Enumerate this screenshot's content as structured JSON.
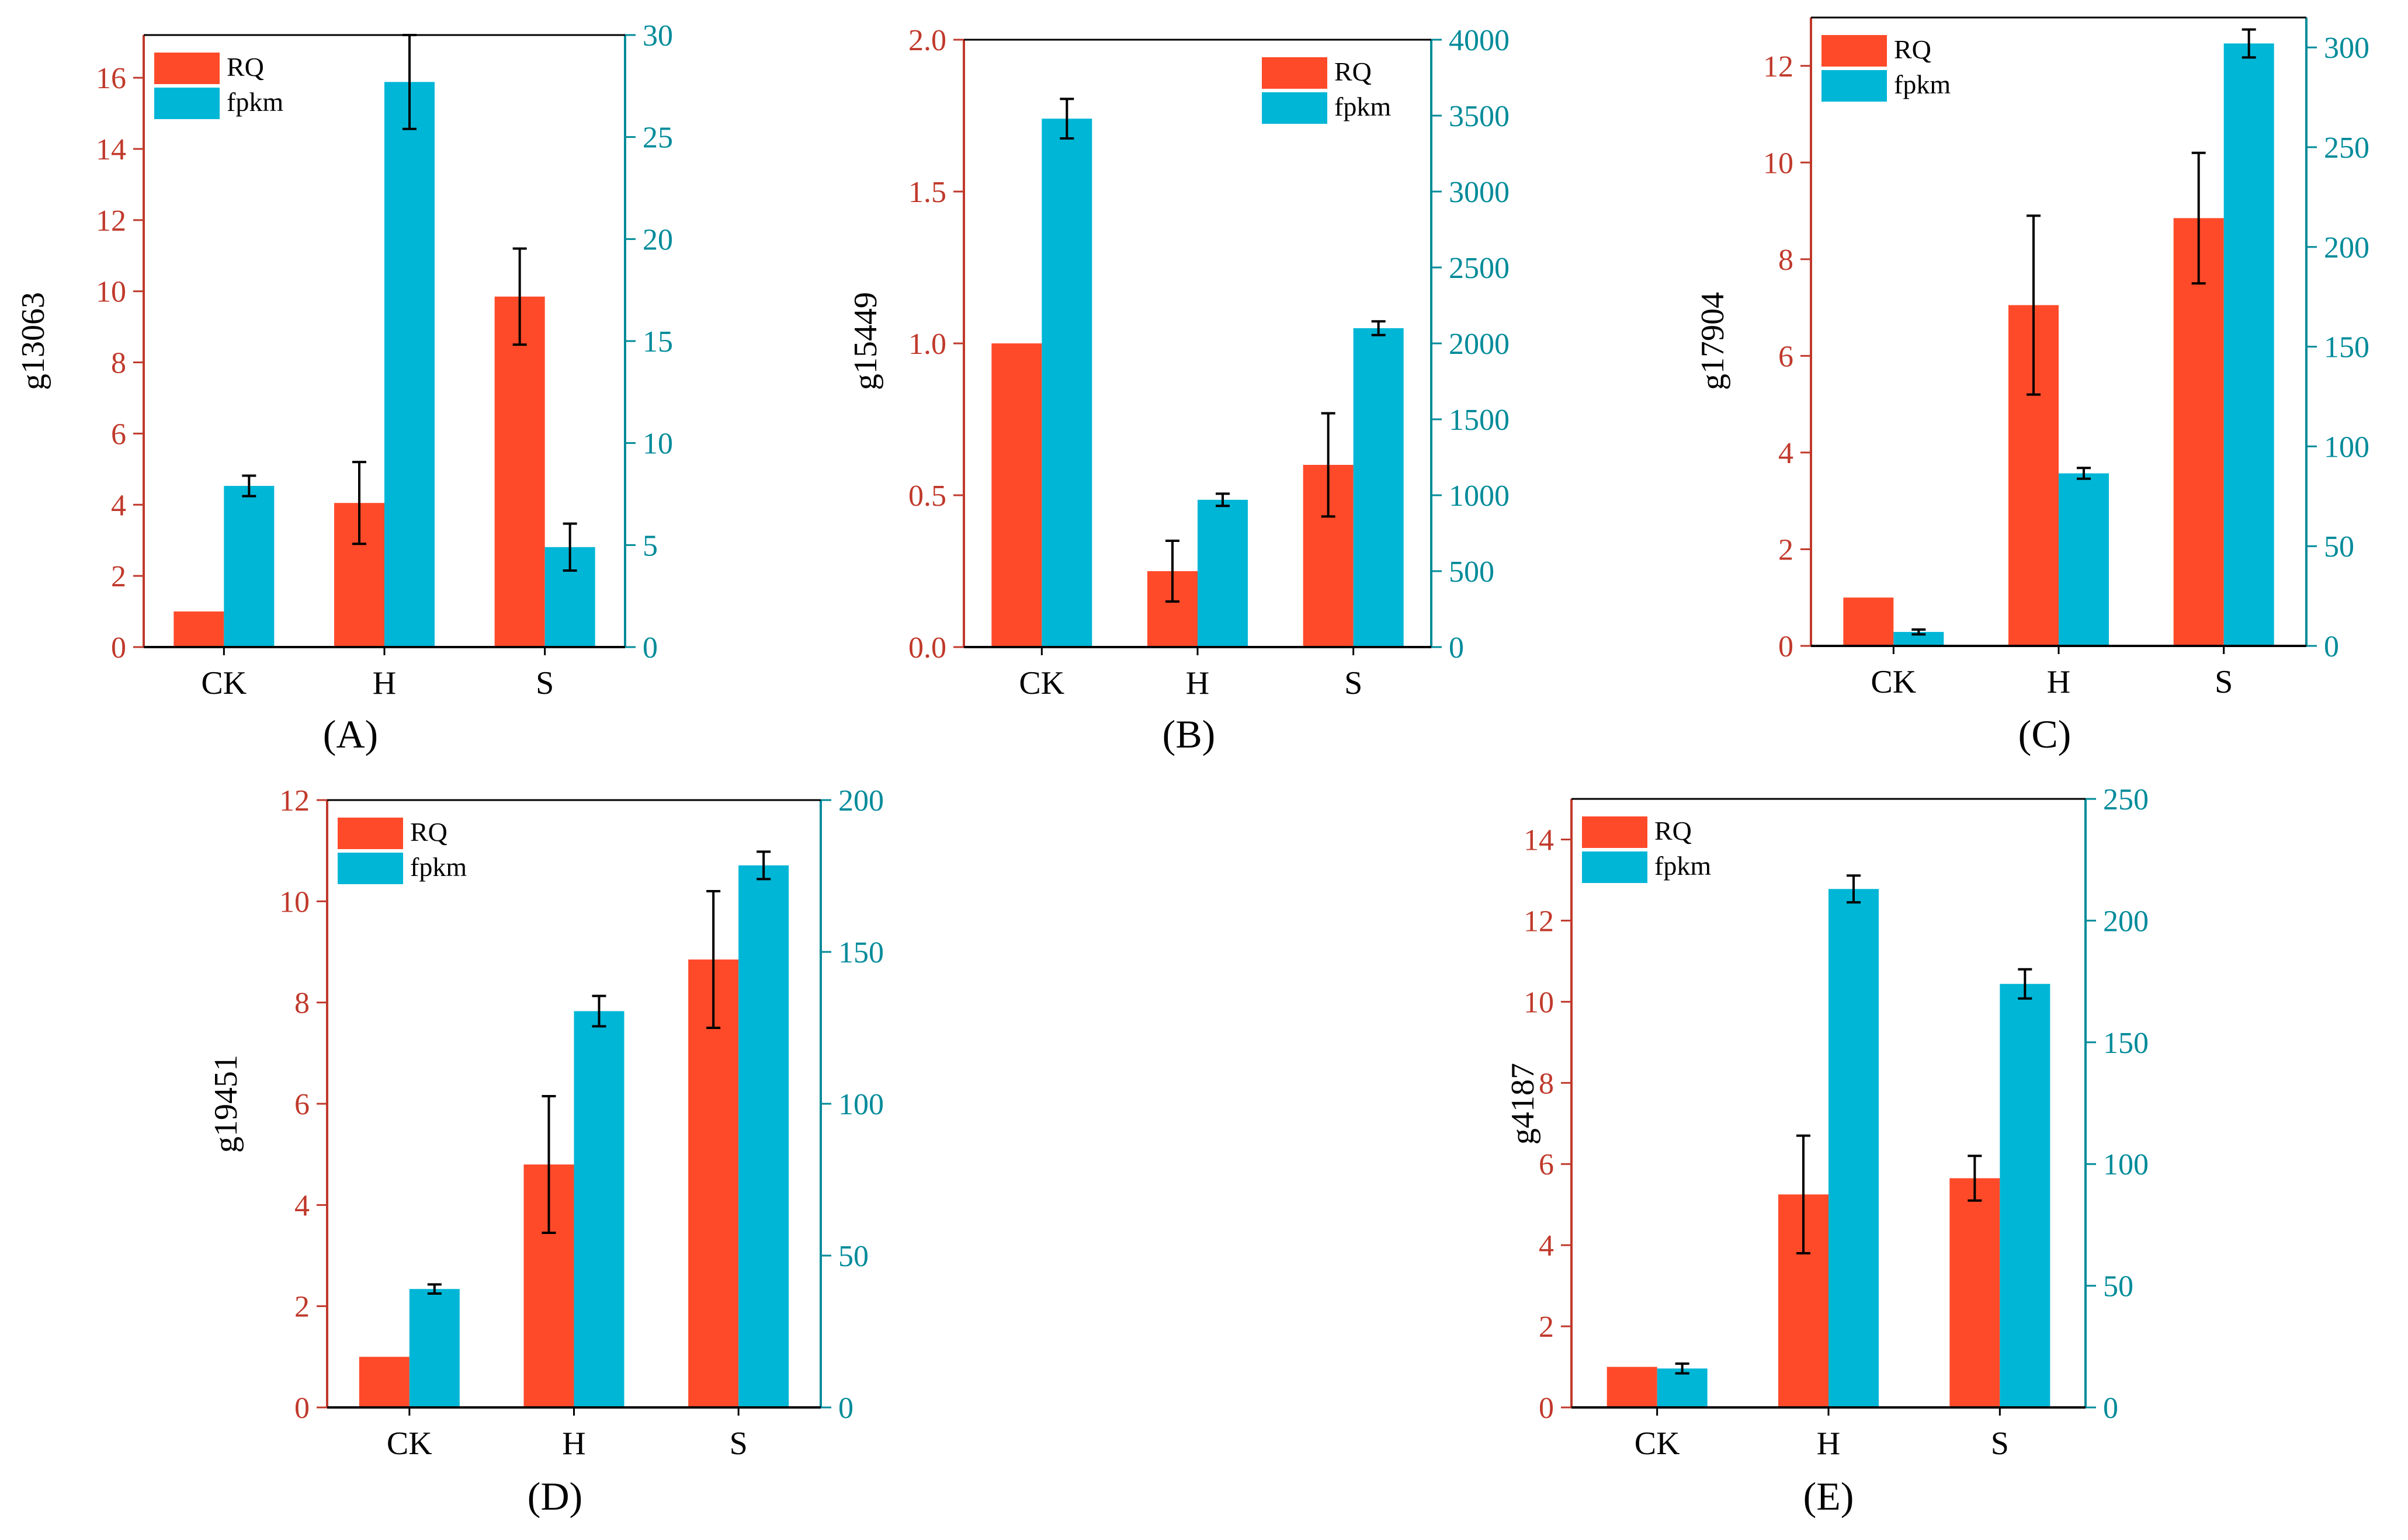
{
  "figure": {
    "colors": {
      "rq": "#FF4A2A",
      "fpkm": "#00B6D6",
      "left_axis": "#C0392B",
      "right_axis": "#008B9A",
      "axis_black": "#000000"
    }
  },
  "chart_data": [
    {
      "panel": "A",
      "panel_label": "(A)",
      "type": "bar",
      "ylabel": "g13063",
      "categories": [
        "CK",
        "H",
        "S"
      ],
      "series": [
        {
          "name": "RQ",
          "axis": "left",
          "values": [
            1.0,
            4.05,
            9.85
          ],
          "errors": [
            0,
            1.15,
            1.35
          ]
        },
        {
          "name": "fpkm",
          "axis": "right",
          "values": [
            7.9,
            27.7,
            4.9
          ],
          "errors": [
            0.5,
            2.3,
            1.15
          ]
        }
      ],
      "left_ylim": [
        0,
        17.2
      ],
      "left_ticks": [
        0,
        2,
        4,
        6,
        8,
        10,
        12,
        14,
        16
      ],
      "right_ylim": [
        0,
        30
      ],
      "right_ticks": [
        0,
        5,
        10,
        15,
        20,
        25,
        30
      ],
      "legend_position": "top-left",
      "grid": false
    },
    {
      "panel": "B",
      "panel_label": "(B)",
      "type": "bar",
      "ylabel": "g15449",
      "categories": [
        "CK",
        "H",
        "S"
      ],
      "series": [
        {
          "name": "RQ",
          "axis": "left",
          "values": [
            1.0,
            0.25,
            0.6
          ],
          "errors": [
            0,
            0.1,
            0.17
          ]
        },
        {
          "name": "fpkm",
          "axis": "right",
          "values": [
            3480,
            970,
            2100
          ],
          "errors": [
            130,
            40,
            45
          ]
        }
      ],
      "left_ylim": [
        0,
        2.0
      ],
      "left_ticks": [
        "0.0",
        "0.5",
        "1.0",
        "1.5",
        "2.0"
      ],
      "right_ylim": [
        0,
        4000
      ],
      "right_ticks": [
        0,
        500,
        1000,
        1500,
        2000,
        2500,
        3000,
        3500,
        4000
      ],
      "legend_position": "top-right",
      "grid": false
    },
    {
      "panel": "C",
      "panel_label": "(C)",
      "type": "bar",
      "ylabel": "g17904",
      "categories": [
        "CK",
        "H",
        "S"
      ],
      "series": [
        {
          "name": "RQ",
          "axis": "left",
          "values": [
            1.0,
            7.05,
            8.85
          ],
          "errors": [
            0,
            1.85,
            1.35
          ]
        },
        {
          "name": "fpkm",
          "axis": "right",
          "values": [
            7,
            86.5,
            302
          ],
          "errors": [
            1.2,
            2.7,
            7
          ]
        }
      ],
      "left_ylim": [
        0,
        13
      ],
      "left_ticks": [
        0,
        2,
        4,
        6,
        8,
        10,
        12
      ],
      "right_ylim": [
        0,
        315
      ],
      "right_ticks": [
        0,
        50,
        100,
        150,
        200,
        250,
        300
      ],
      "legend_position": "top-left",
      "grid": false
    },
    {
      "panel": "D",
      "panel_label": "(D)",
      "type": "bar",
      "ylabel": "g19451",
      "categories": [
        "CK",
        "H",
        "S"
      ],
      "series": [
        {
          "name": "RQ",
          "axis": "left",
          "values": [
            1.0,
            4.8,
            8.85
          ],
          "errors": [
            0,
            1.35,
            1.35
          ]
        },
        {
          "name": "fpkm",
          "axis": "right",
          "values": [
            39,
            130.5,
            178.5
          ],
          "errors": [
            1.5,
            5,
            4.5
          ]
        }
      ],
      "left_ylim": [
        0,
        12
      ],
      "left_ticks": [
        0,
        2,
        4,
        6,
        8,
        10,
        12
      ],
      "right_ylim": [
        0,
        200
      ],
      "right_ticks": [
        0,
        50,
        100,
        150,
        200
      ],
      "legend_position": "top-left",
      "grid": false
    },
    {
      "panel": "E",
      "panel_label": "(E)",
      "type": "bar",
      "ylabel": "g4187",
      "categories": [
        "CK",
        "H",
        "S"
      ],
      "series": [
        {
          "name": "RQ",
          "axis": "left",
          "values": [
            1.0,
            5.25,
            5.65
          ],
          "errors": [
            0,
            1.45,
            0.55
          ]
        },
        {
          "name": "fpkm",
          "axis": "right",
          "values": [
            16,
            213,
            174
          ],
          "errors": [
            2,
            5.5,
            6
          ]
        }
      ],
      "left_ylim": [
        0,
        15
      ],
      "left_ticks": [
        0,
        2,
        4,
        6,
        8,
        10,
        12,
        14
      ],
      "right_ylim": [
        0,
        250
      ],
      "right_ticks": [
        0,
        50,
        100,
        150,
        200,
        250
      ],
      "legend_position": "top-left",
      "grid": false
    }
  ]
}
